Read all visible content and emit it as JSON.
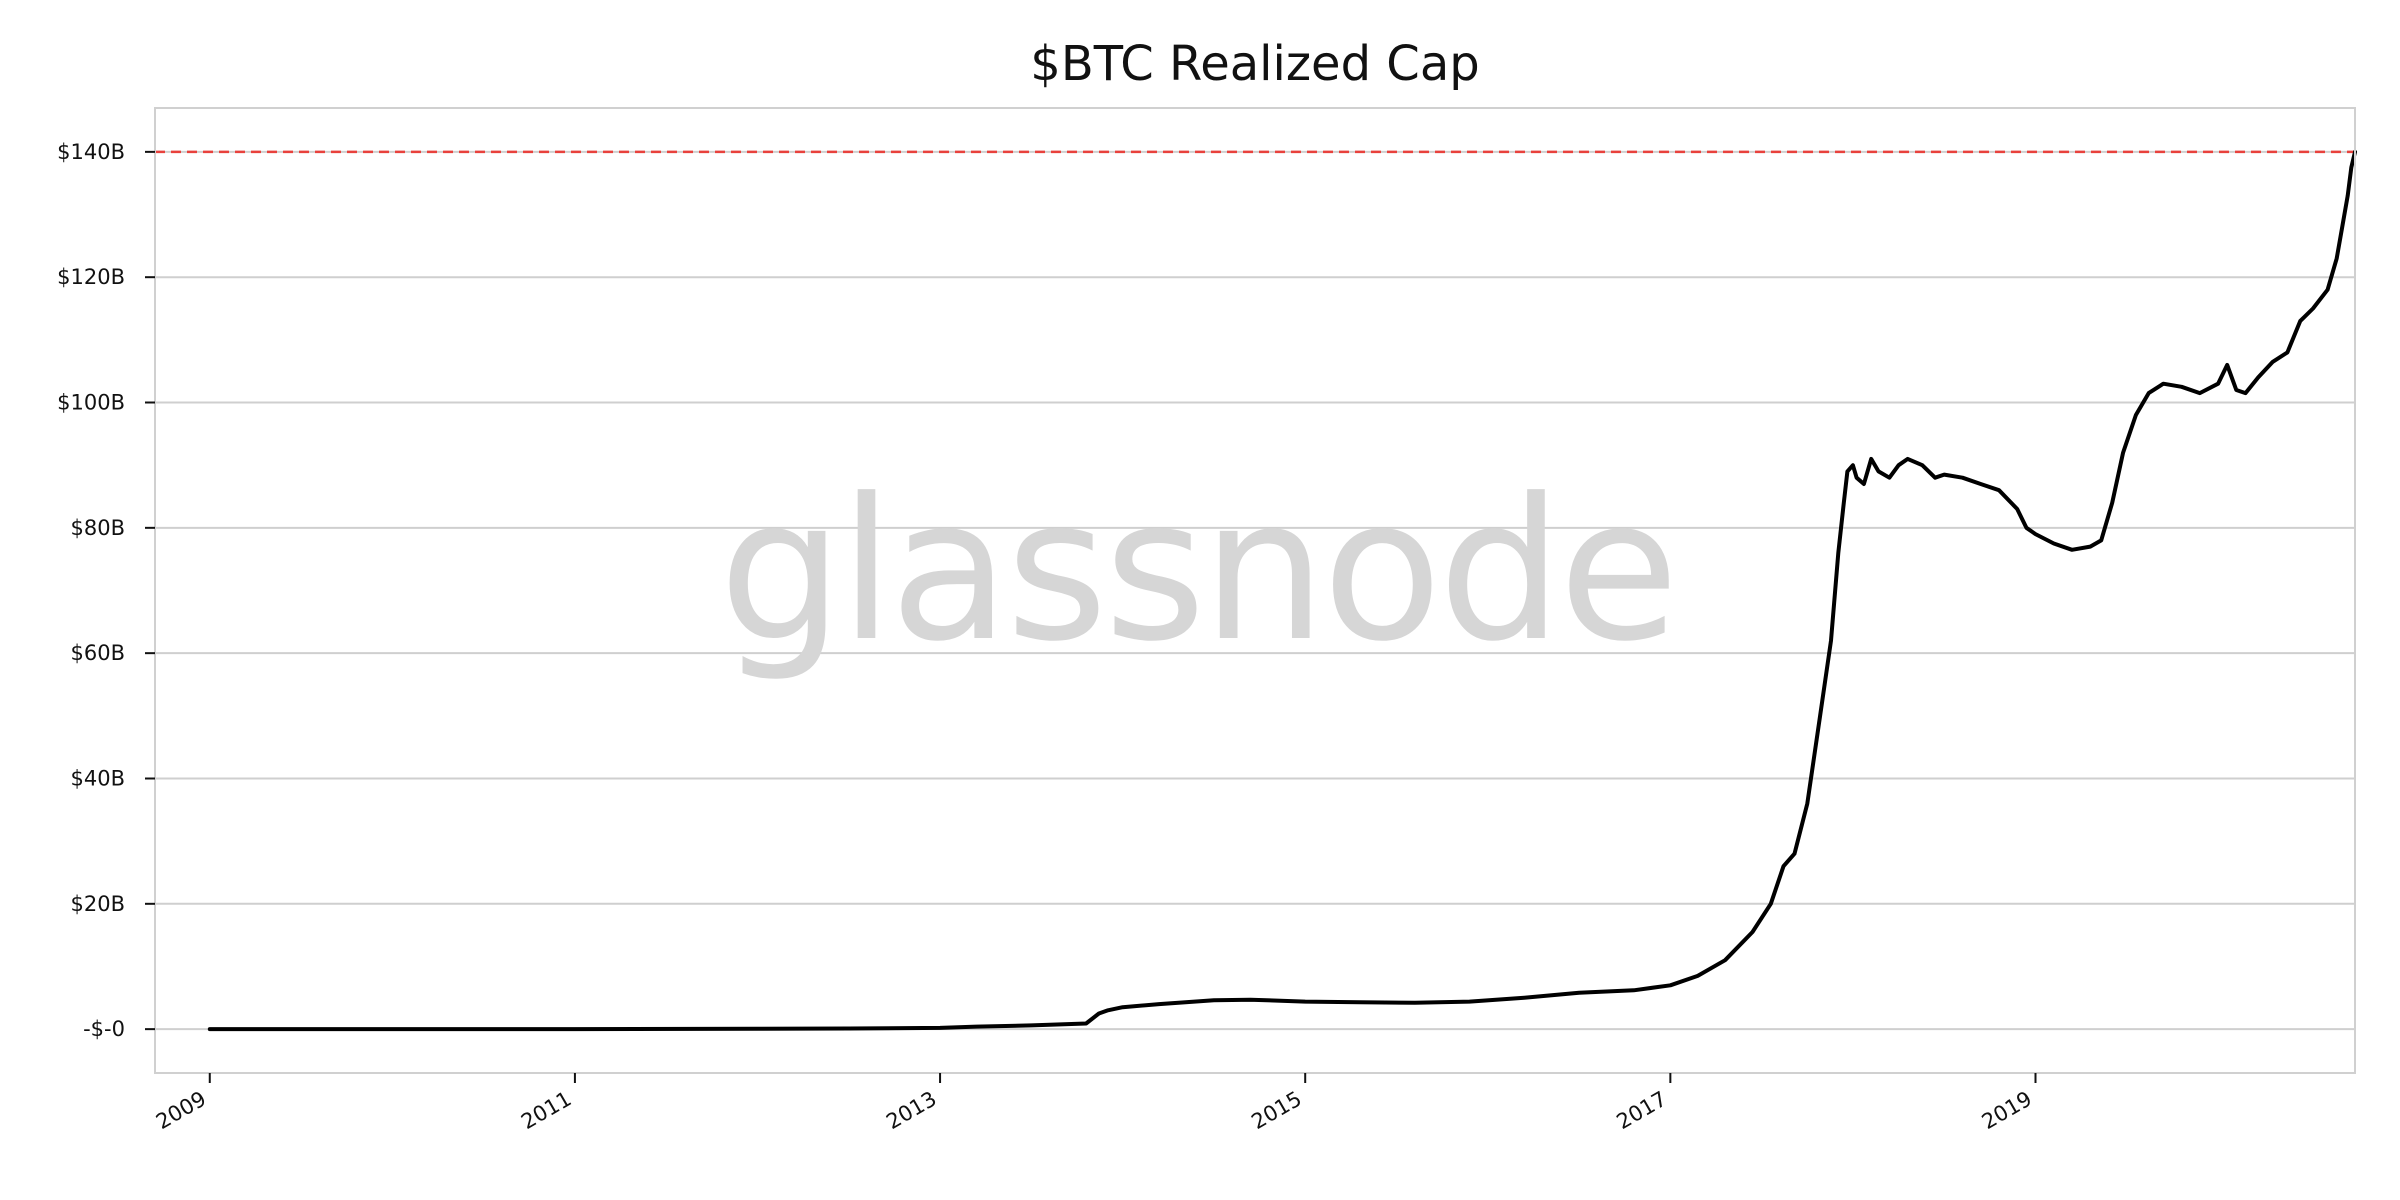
{
  "colors": {
    "line": "#000000",
    "reference_line": "#e8413c",
    "grid": "#cfcfcf",
    "frame": "#d0d0d0",
    "watermark": "#d6d6d6"
  },
  "watermark": "glassnode",
  "chart_data": {
    "type": "line",
    "title": "$BTC Realized Cap",
    "xlabel": "",
    "ylabel": "",
    "grid": "horizontal",
    "legend": "none",
    "x_range": [
      2008.7,
      2020.75
    ],
    "ylim": [
      -7,
      147
    ],
    "y_ticks": [
      {
        "value": 0,
        "label": "-$-0"
      },
      {
        "value": 20,
        "label": "$20B"
      },
      {
        "value": 40,
        "label": "$40B"
      },
      {
        "value": 60,
        "label": "$60B"
      },
      {
        "value": 80,
        "label": "$80B"
      },
      {
        "value": 100,
        "label": "$100B"
      },
      {
        "value": 120,
        "label": "$120B"
      },
      {
        "value": 140,
        "label": "$140B"
      }
    ],
    "x_ticks": [
      {
        "value": 2009,
        "label": "2009"
      },
      {
        "value": 2011,
        "label": "2011"
      },
      {
        "value": 2013,
        "label": "2013"
      },
      {
        "value": 2015,
        "label": "2015"
      },
      {
        "value": 2017,
        "label": "2017"
      },
      {
        "value": 2019,
        "label": "2019"
      }
    ],
    "reference_lines": [
      {
        "axis": "y",
        "value": 140,
        "style": "dashed"
      }
    ],
    "series": [
      {
        "unit": "USD billions",
        "x": [
          2009.0,
          2010.0,
          2011.0,
          2012.0,
          2012.5,
          2013.0,
          2013.2,
          2013.5,
          2013.8,
          2013.87,
          2013.92,
          2014.0,
          2014.2,
          2014.5,
          2014.7,
          2015.0,
          2015.3,
          2015.6,
          2015.9,
          2016.2,
          2016.5,
          2016.8,
          2017.0,
          2017.15,
          2017.3,
          2017.45,
          2017.55,
          2017.62,
          2017.68,
          2017.75,
          2017.82,
          2017.88,
          2017.92,
          2017.95,
          2017.97,
          2018.0,
          2018.02,
          2018.06,
          2018.1,
          2018.14,
          2018.2,
          2018.25,
          2018.3,
          2018.38,
          2018.45,
          2018.5,
          2018.6,
          2018.7,
          2018.8,
          2018.9,
          2018.95,
          2019.0,
          2019.1,
          2019.2,
          2019.3,
          2019.36,
          2019.42,
          2019.48,
          2019.55,
          2019.62,
          2019.7,
          2019.8,
          2019.9,
          2020.0,
          2020.05,
          2020.1,
          2020.15,
          2020.22,
          2020.3,
          2020.38,
          2020.45,
          2020.52,
          2020.6,
          2020.65,
          2020.68,
          2020.71,
          2020.73,
          2020.75
        ],
        "y": [
          0.0,
          0.0,
          0.0,
          0.05,
          0.1,
          0.2,
          0.4,
          0.6,
          0.9,
          2.5,
          3.0,
          3.5,
          4.0,
          4.6,
          4.7,
          4.4,
          4.3,
          4.2,
          4.4,
          5.0,
          5.8,
          6.2,
          7.0,
          8.5,
          11.0,
          15.5,
          20.0,
          26.0,
          28.0,
          36.0,
          50.0,
          62.0,
          76.0,
          84.0,
          89.0,
          90.0,
          88.0,
          87.0,
          91.0,
          89.0,
          88.0,
          90.0,
          91.0,
          90.0,
          88.0,
          88.5,
          88.0,
          87.0,
          86.0,
          83.0,
          80.0,
          79.0,
          77.5,
          76.5,
          77.0,
          78.0,
          84.0,
          92.0,
          98.0,
          101.5,
          103.0,
          102.5,
          101.5,
          103.0,
          106.0,
          102.0,
          101.5,
          104.0,
          106.5,
          108.0,
          113.0,
          115.0,
          118.0,
          123.0,
          128.0,
          133.0,
          137.5,
          140.0
        ]
      }
    ]
  }
}
